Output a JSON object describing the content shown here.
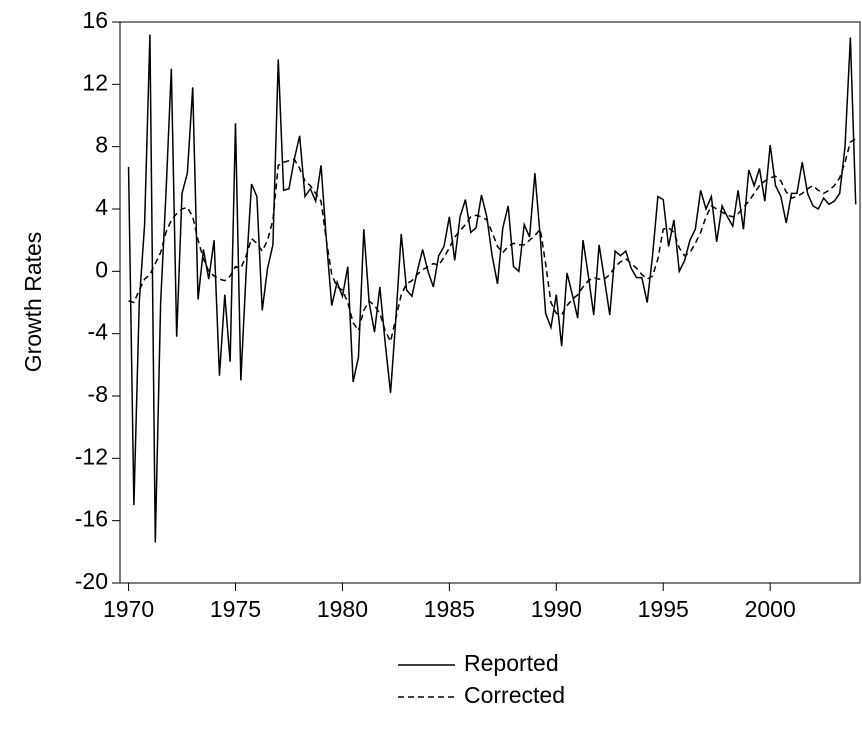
{
  "chart_data": {
    "type": "line",
    "y_label": "Growth Rates",
    "x": [
      1970,
      1970.25,
      1970.5,
      1970.75,
      1971,
      1971.25,
      1971.5,
      1971.75,
      1972,
      1972.25,
      1972.5,
      1972.75,
      1973,
      1973.25,
      1973.5,
      1973.75,
      1974,
      1974.25,
      1974.5,
      1974.75,
      1975,
      1975.25,
      1975.5,
      1975.75,
      1976,
      1976.25,
      1976.5,
      1976.75,
      1977,
      1977.25,
      1977.5,
      1977.75,
      1978,
      1978.25,
      1978.5,
      1978.75,
      1979,
      1979.25,
      1979.5,
      1979.75,
      1980,
      1980.25,
      1980.5,
      1980.75,
      1981,
      1981.25,
      1981.5,
      1981.75,
      1982,
      1982.25,
      1982.5,
      1982.75,
      1983,
      1983.25,
      1983.5,
      1983.75,
      1984,
      1984.25,
      1984.5,
      1984.75,
      1985,
      1985.25,
      1985.5,
      1985.75,
      1986,
      1986.25,
      1986.5,
      1986.75,
      1987,
      1987.25,
      1987.5,
      1987.75,
      1988,
      1988.25,
      1988.5,
      1988.75,
      1989,
      1989.25,
      1989.5,
      1989.75,
      1990,
      1990.25,
      1990.5,
      1990.75,
      1991,
      1991.25,
      1991.5,
      1991.75,
      1992,
      1992.25,
      1992.5,
      1992.75,
      1993,
      1993.25,
      1993.5,
      1993.75,
      1994,
      1994.25,
      1994.5,
      1994.75,
      1995,
      1995.25,
      1995.5,
      1995.75,
      1996,
      1996.25,
      1996.5,
      1996.75,
      1997,
      1997.25,
      1997.5,
      1997.75,
      1998,
      1998.25,
      1998.5,
      1998.75,
      1999,
      1999.25,
      1999.5,
      1999.75,
      2000,
      2000.25,
      2000.5,
      2000.75,
      2001,
      2001.25,
      2001.5,
      2001.75,
      2002,
      2002.25,
      2002.5,
      2002.75,
      2003,
      2003.25,
      2003.5,
      2003.75,
      2004
    ],
    "series": [
      {
        "name": "Reported",
        "color": "#000000",
        "line_style": "solid",
        "values": [
          6.7,
          -15,
          -2,
          3,
          15.2,
          -17.4,
          -2,
          5,
          13,
          -4.2,
          5,
          6.3,
          11.8,
          -1.8,
          1.4,
          -0.5,
          2,
          -6.7,
          -1.5,
          -5.8,
          9.5,
          -7,
          0,
          5.6,
          4.8,
          -2.5,
          0.2,
          1.7,
          13.6,
          5.2,
          5.3,
          7.2,
          8.7,
          4.8,
          5.3,
          4.5,
          6.8,
          2,
          -2.2,
          -0.7,
          -1.6,
          0.3,
          -7.1,
          -5.5,
          2.7,
          -2,
          -3.9,
          -1,
          -4.6,
          -7.8,
          -3,
          2.4,
          -1.2,
          -1.6,
          0,
          1.4,
          0,
          -1,
          1,
          1.6,
          3.5,
          0.7,
          3.5,
          4.6,
          2.5,
          2.8,
          4.9,
          3.5,
          1,
          -0.8,
          2.8,
          4.2,
          0.3,
          0,
          3,
          2.2,
          6.3,
          2.2,
          -2.7,
          -3.6,
          -1.5,
          -4.8,
          -0.1,
          -1.5,
          -3,
          2,
          -0.3,
          -2.8,
          1.7,
          -0.5,
          -2.8,
          1.3,
          1,
          1.3,
          0.2,
          -0.4,
          -0.4,
          -2,
          1,
          4.8,
          4.6,
          1.6,
          3.3,
          0,
          0.7,
          2,
          2.7,
          5.2,
          4,
          4.8,
          1.9,
          4.2,
          3.5,
          2.9,
          5.2,
          2.7,
          6.5,
          5.5,
          6.6,
          4.5,
          8.1,
          5.5,
          4.8,
          3.1,
          5,
          5,
          7,
          5,
          4.2,
          4,
          4.7,
          4.3,
          4.5,
          5,
          8,
          15,
          4.3
        ]
      },
      {
        "name": "Corrected",
        "color": "#000000",
        "line_style": "dashed",
        "values": [
          -1.9,
          -2,
          -1.2,
          -0.5,
          -0.2,
          0.5,
          1.2,
          2.5,
          3.3,
          3.7,
          4,
          4.1,
          3.5,
          2,
          0.8,
          0,
          -0.3,
          -0.5,
          -0.6,
          -0.3,
          0.3,
          0.2,
          1,
          2.1,
          1.8,
          1.3,
          2,
          3.3,
          6.8,
          7,
          7.1,
          7.2,
          6.6,
          5.8,
          5.5,
          5,
          4.5,
          2,
          -0.2,
          -1,
          -1.2,
          -2,
          -3.3,
          -3.8,
          -2.5,
          -1.9,
          -2.2,
          -2.7,
          -3.8,
          -4.5,
          -3,
          -1.5,
          -0.8,
          -0.6,
          -0.2,
          0.1,
          0.3,
          0.5,
          0.4,
          0.9,
          1.5,
          2.2,
          2.6,
          3,
          3.5,
          3.6,
          3.5,
          3.3,
          2.5,
          1.6,
          1.2,
          1.6,
          1.8,
          1.7,
          1.7,
          2,
          2.3,
          2.7,
          0.5,
          -2,
          -2.7,
          -2.8,
          -2.2,
          -1.8,
          -1.5,
          -1,
          -0.6,
          -0.4,
          -0.5,
          -0.5,
          -0.2,
          0.3,
          0.6,
          0.8,
          0.5,
          0.2,
          -0.2,
          -0.5,
          -0.3,
          0.8,
          2.7,
          2.8,
          2.5,
          1.5,
          1,
          1.2,
          1.8,
          2.5,
          3.5,
          4.2,
          4,
          3.8,
          3.6,
          3.5,
          3.7,
          4.1,
          4.5,
          5,
          5.5,
          5.8,
          6,
          6.1,
          5.8,
          5.1,
          4.7,
          4.8,
          5,
          5.3,
          5.5,
          5.2,
          5,
          5.2,
          5.5,
          6,
          7,
          8.3,
          8.5
        ]
      }
    ],
    "xlim": [
      1969.6,
      2004.2
    ],
    "xticks": [
      1970,
      1975,
      1980,
      1985,
      1990,
      1995,
      2000
    ],
    "ylim": [
      -20,
      16
    ],
    "yticks": [
      -20,
      -16,
      -12,
      -8,
      -4,
      0,
      4,
      8,
      12,
      16
    ],
    "legend": "bottom"
  }
}
